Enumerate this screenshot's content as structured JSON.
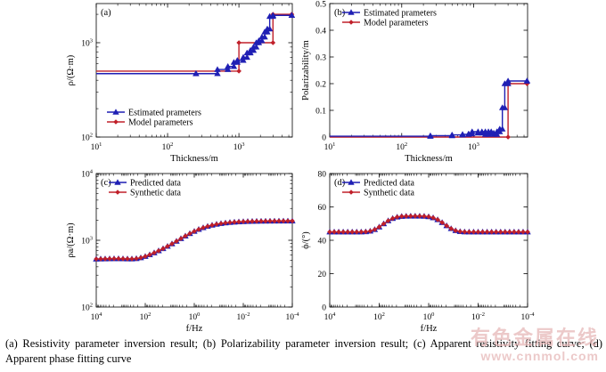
{
  "caption": "(a) Resistivity parameter inversion result; (b) Polarizability parameter inversion result; (c) Apparent resistivity fitting curve; (d) Apparent phase fitting curve",
  "watermark": {
    "line1": "有色金属在线",
    "line2": "www.cnnmol.com"
  },
  "colors": {
    "blue": "#1f1fb4",
    "red": "#c0202a",
    "frame": "#000000"
  },
  "chart_data": [
    {
      "panel_label": "(a)",
      "type": "line",
      "xlabel": "Thickness/m",
      "ylabel": "ρ/(Ω·m)",
      "xscale": "log",
      "yscale": "log",
      "xlim": [
        10,
        5600
      ],
      "ylim": [
        100,
        2600
      ],
      "x_ticks": [
        {
          "v": 10,
          "b": "10",
          "e": "1"
        },
        {
          "v": 100,
          "b": "10",
          "e": "2"
        },
        {
          "v": 1000,
          "b": "10",
          "e": "3"
        }
      ],
      "y_ticks": [
        {
          "v": 100,
          "b": "10",
          "e": "2"
        },
        {
          "v": 1000,
          "b": "10",
          "e": "3"
        }
      ],
      "legend_position": "bottom-left",
      "series": [
        {
          "name": "Estimated prameters",
          "color": "blue",
          "marker": "triangle",
          "x": [
            10,
            250,
            500,
            700,
            850,
            950,
            1150,
            1300,
            1450,
            1600,
            1750,
            1900,
            2100,
            2300,
            2500,
            2700,
            3000,
            5500
          ],
          "y": [
            470,
            470,
            520,
            560,
            620,
            650,
            700,
            780,
            830,
            900,
            1000,
            1050,
            1150,
            1300,
            1400,
            1900,
            1950,
            1950
          ]
        },
        {
          "name": "Model parameters",
          "color": "red",
          "marker": "diamond",
          "x": [
            10,
            1000,
            3000,
            5500
          ],
          "y": [
            500,
            1000,
            2000,
            2000
          ]
        }
      ]
    },
    {
      "panel_label": "(b)",
      "type": "line",
      "xlabel": "Thickness/m",
      "ylabel": "Polarizability/m",
      "xscale": "log",
      "yscale": "linear",
      "xlim": [
        10,
        5600
      ],
      "ylim": [
        0,
        0.5
      ],
      "x_ticks": [
        {
          "v": 10,
          "b": "10",
          "e": "1"
        },
        {
          "v": 100,
          "b": "10",
          "e": "2"
        },
        {
          "v": 1000,
          "b": "10",
          "e": "3"
        }
      ],
      "y_ticks": [
        {
          "v": 0,
          "l": "0"
        },
        {
          "v": 0.1,
          "l": "0.1"
        },
        {
          "v": 0.2,
          "l": "0.2"
        },
        {
          "v": 0.3,
          "l": "0.3"
        },
        {
          "v": 0.4,
          "l": "0.4"
        },
        {
          "v": 0.5,
          "l": "0.5"
        }
      ],
      "legend_position": "top-left",
      "series": [
        {
          "name": "Estimated prameters",
          "color": "blue",
          "marker": "triangle",
          "x": [
            10,
            250,
            500,
            700,
            850,
            950,
            1150,
            1300,
            1450,
            1600,
            1750,
            1900,
            2100,
            2300,
            2500,
            2700,
            3000,
            5500
          ],
          "y": [
            0.003,
            0.005,
            0.008,
            0.01,
            0.012,
            0.02,
            0.015,
            0.02,
            0.01,
            0.02,
            0.015,
            0.01,
            0.02,
            0.03,
            0.11,
            0.2,
            0.21,
            0.21
          ]
        },
        {
          "name": "Model parameters",
          "color": "red",
          "marker": "diamond",
          "x": [
            10,
            3000,
            5500
          ],
          "y": [
            0,
            0.2,
            0.2
          ]
        }
      ]
    },
    {
      "panel_label": "(c)",
      "type": "line",
      "xlabel": "f/Hz",
      "ylabel": "ρa/(Ω·m)",
      "xscale": "log",
      "yscale": "log",
      "x_reversed": true,
      "xlim": [
        10000,
        0.0001
      ],
      "ylim": [
        100,
        10000
      ],
      "x_ticks": [
        {
          "v": 10000,
          "b": "10",
          "e": "4"
        },
        {
          "v": 100,
          "b": "10",
          "e": "2"
        },
        {
          "v": 1,
          "b": "10",
          "e": "0"
        },
        {
          "v": 0.01,
          "b": "10",
          "e": "-2"
        },
        {
          "v": 0.0001,
          "b": "10",
          "e": "-4"
        }
      ],
      "y_ticks": [
        {
          "v": 100,
          "b": "10",
          "e": "2"
        },
        {
          "v": 1000,
          "b": "10",
          "e": "3"
        },
        {
          "v": 10000,
          "b": "10",
          "e": "4"
        }
      ],
      "legend_position": "top-left",
      "series": [
        {
          "name": "Predicted data",
          "color": "blue",
          "marker": "triangle",
          "x": [
            10000,
            0.0001
          ],
          "y": [
            520,
            1950
          ]
        },
        {
          "name": "Synthetic data",
          "color": "red",
          "marker": "diamond",
          "x": [
            10000,
            0.0001
          ],
          "y": [
            520,
            1950
          ]
        }
      ]
    },
    {
      "panel_label": "(d)",
      "type": "line",
      "xlabel": "f/Hz",
      "ylabel": "ϕ/(°)",
      "xscale": "log",
      "yscale": "linear",
      "x_reversed": true,
      "xlim": [
        10000,
        0.0001
      ],
      "ylim": [
        0,
        80
      ],
      "x_ticks": [
        {
          "v": 10000,
          "b": "10",
          "e": "4"
        },
        {
          "v": 100,
          "b": "10",
          "e": "2"
        },
        {
          "v": 1,
          "b": "10",
          "e": "0"
        },
        {
          "v": 0.01,
          "b": "10",
          "e": "-2"
        },
        {
          "v": 0.0001,
          "b": "10",
          "e": "-4"
        }
      ],
      "y_ticks": [
        {
          "v": 0,
          "l": "0"
        },
        {
          "v": 20,
          "l": "20"
        },
        {
          "v": 40,
          "l": "40"
        },
        {
          "v": 60,
          "l": "60"
        },
        {
          "v": 80,
          "l": "80"
        }
      ],
      "legend_position": "top-left",
      "series": [
        {
          "name": "Predicted data",
          "color": "blue",
          "marker": "triangle",
          "x": [
            10000,
            0.0001
          ],
          "y": [
            45,
            45
          ]
        },
        {
          "name": "Synthetic data",
          "color": "red",
          "marker": "diamond",
          "x": [
            10000,
            0.0001
          ],
          "y": [
            45,
            45
          ]
        }
      ]
    }
  ]
}
